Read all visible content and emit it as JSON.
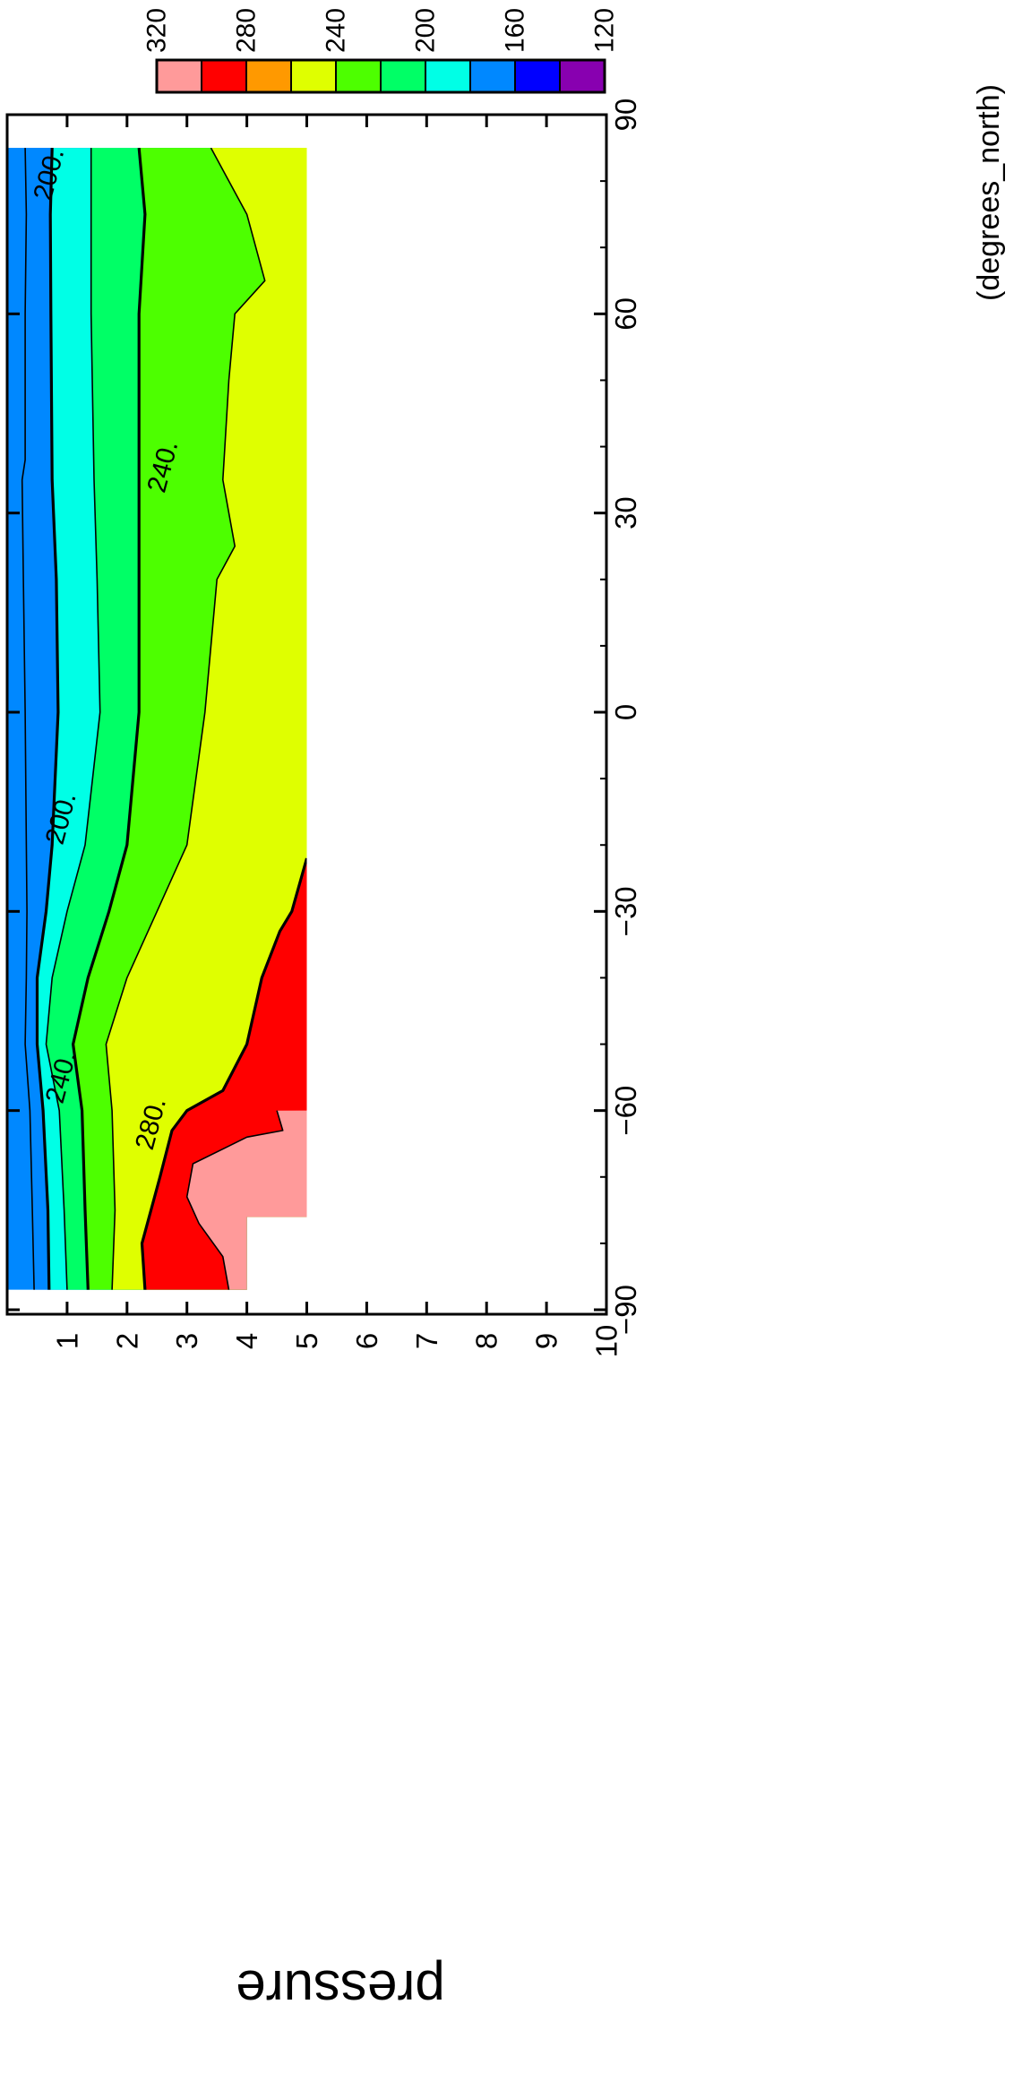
{
  "chart_data": {
    "type": "contour",
    "orientation": "rotated 90 degrees clockwise",
    "x": {
      "label": "(degrees_north)",
      "ticks": [
        -90,
        -60,
        -30,
        0,
        30,
        60,
        90
      ],
      "tick_labels": [
        "−90",
        "−60",
        "−30",
        "0",
        "30",
        "60",
        "90"
      ],
      "range": [
        -90,
        90
      ]
    },
    "y": {
      "label": "pressure",
      "ticks": [
        1,
        2,
        3,
        4,
        5,
        6,
        7,
        8,
        9,
        10
      ],
      "tick_labels": [
        "1",
        "2",
        "3",
        "4",
        "5",
        "6",
        "7",
        "8",
        "9",
        "10"
      ],
      "range": [
        10,
        0
      ]
    },
    "levels": [
      120,
      140,
      160,
      180,
      200,
      220,
      240,
      260,
      280,
      300,
      320
    ],
    "colorbar": {
      "tick_labels": [
        "320",
        "280",
        "240",
        "200",
        "160",
        "120"
      ],
      "colors": [
        "#ff9a9a",
        "#ff0000",
        "#ff9900",
        "#dfff00",
        "#4dff00",
        "#00ff66",
        "#00ffe6",
        "#0088ff",
        "#0000ff",
        "#8800b0"
      ]
    },
    "fill_colors": {
      "140-160": "#0088ff",
      "160-180": "#00ffe6",
      "180-200": "#00ff66",
      "200-220": "#4dff00",
      "220-240": "#dfff00",
      "240-260": "#ff9900",
      "260-280": "#ff0000",
      "280-300": "#ff9a9a"
    },
    "contour_labels": [
      {
        "text": "200.",
        "lat": 81,
        "p": 0.7
      },
      {
        "text": "200.",
        "lat": -16,
        "p": 0.9
      },
      {
        "text": "240.",
        "lat": -55,
        "p": 0.9
      },
      {
        "text": "240.",
        "lat": 37,
        "p": 2.6
      },
      {
        "text": "280.",
        "lat": -62,
        "p": 2.4
      }
    ],
    "bands": [
      {
        "color": "#0088ff",
        "points": [
          [
            -87,
            0.45
          ],
          [
            -75,
            0.42
          ],
          [
            -60,
            0.38
          ],
          [
            -50,
            0.3
          ],
          [
            -40,
            0.32
          ],
          [
            -30,
            0.33
          ],
          [
            -20,
            0.32
          ],
          [
            0,
            0.3
          ],
          [
            20,
            0.27
          ],
          [
            35,
            0.25
          ],
          [
            38,
            0.3
          ],
          [
            60,
            0.3
          ],
          [
            75,
            0.32
          ],
          [
            85,
            0.3
          ]
        ]
      },
      {
        "color": "#00ffe6",
        "points": [
          [
            -87,
            0.7
          ],
          [
            -75,
            0.68
          ],
          [
            -60,
            0.6
          ],
          [
            -50,
            0.5
          ],
          [
            -40,
            0.5
          ],
          [
            -30,
            0.65
          ],
          [
            -20,
            0.75
          ],
          [
            0,
            0.85
          ],
          [
            20,
            0.82
          ],
          [
            35,
            0.75
          ],
          [
            60,
            0.73
          ],
          [
            75,
            0.72
          ],
          [
            85,
            0.75
          ]
        ]
      },
      {
        "color": "#00ff66",
        "points": [
          [
            -87,
            1.0
          ],
          [
            -75,
            0.95
          ],
          [
            -60,
            0.87
          ],
          [
            -50,
            0.65
          ],
          [
            -40,
            0.75
          ],
          [
            -30,
            1.0
          ],
          [
            -20,
            1.3
          ],
          [
            0,
            1.55
          ],
          [
            20,
            1.5
          ],
          [
            35,
            1.45
          ],
          [
            60,
            1.4
          ],
          [
            75,
            1.4
          ],
          [
            85,
            1.4
          ]
        ]
      },
      {
        "color": "#4dff00",
        "points": [
          [
            -87,
            1.35
          ],
          [
            -75,
            1.3
          ],
          [
            -60,
            1.25
          ],
          [
            -50,
            1.1
          ],
          [
            -40,
            1.35
          ],
          [
            -30,
            1.7
          ],
          [
            -20,
            2.0
          ],
          [
            0,
            2.2
          ],
          [
            20,
            2.2
          ],
          [
            35,
            2.2
          ],
          [
            60,
            2.2
          ],
          [
            75,
            2.3
          ],
          [
            85,
            2.2
          ]
        ]
      },
      {
        "color": "#dfff00",
        "points": [
          [
            -87,
            1.75
          ],
          [
            -75,
            1.8
          ],
          [
            -60,
            1.75
          ],
          [
            -50,
            1.65
          ],
          [
            -40,
            2.0
          ],
          [
            -30,
            2.5
          ],
          [
            -20,
            3.0
          ],
          [
            0,
            3.3
          ],
          [
            20,
            3.5
          ],
          [
            25,
            3.8
          ],
          [
            35,
            3.6
          ],
          [
            50,
            3.7
          ],
          [
            60,
            3.8
          ],
          [
            65,
            4.3
          ],
          [
            75,
            4.0
          ],
          [
            85,
            3.4
          ]
        ]
      },
      {
        "color": "#ff0000",
        "points": [
          [
            -87,
            2.3
          ],
          [
            -80,
            2.25
          ],
          [
            -70,
            2.55
          ],
          [
            -63,
            2.75
          ],
          [
            -60,
            3.0
          ],
          [
            -57,
            3.6
          ],
          [
            -50,
            4.0
          ],
          [
            -40,
            4.25
          ],
          [
            -33,
            4.55
          ],
          [
            -30,
            4.75
          ],
          [
            -22,
            5.0
          ]
        ]
      },
      {
        "color": "#ff9a9a",
        "points": [
          [
            -87,
            3.7
          ],
          [
            -82,
            3.6
          ],
          [
            -77,
            3.2
          ],
          [
            -73,
            3.0
          ],
          [
            -68,
            3.1
          ],
          [
            -64,
            4.0
          ],
          [
            -63,
            4.6
          ],
          [
            -60,
            4.5
          ]
        ]
      }
    ],
    "data_coverage": {
      "p_bottom": 5.0,
      "notes": "latitude span -87 to 85, pressure 0.45 to 5; empty below p=4.0 for lat < -76"
    }
  }
}
